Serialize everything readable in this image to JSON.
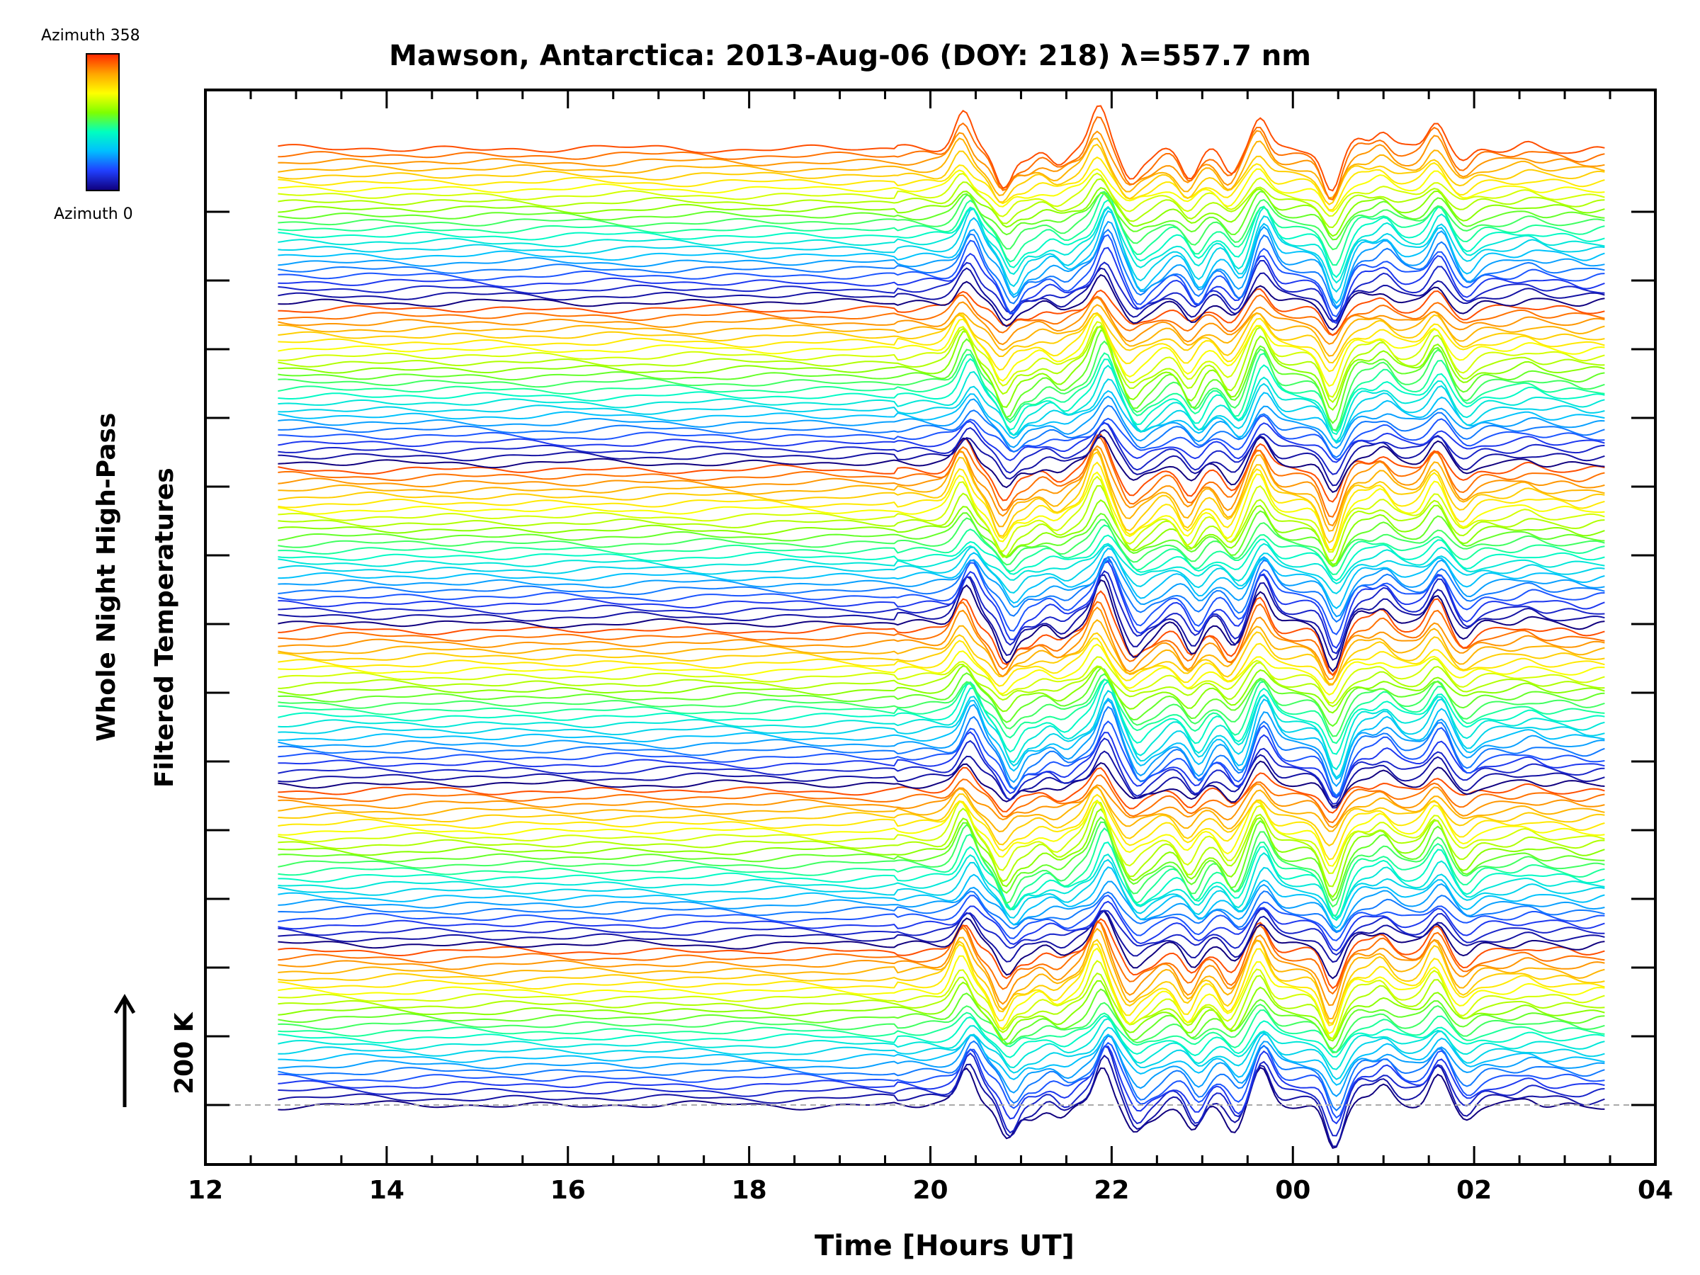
{
  "chart_data": {
    "type": "line",
    "title": "Mawson, Antarctica: 2013-Aug-06 (DOY: 218) λ=557.7 nm",
    "xlabel": "Time [Hours UT]",
    "ylabel": [
      "Whole Night High-Pass",
      "Filtered Temperatures"
    ],
    "xticks": [
      "12",
      "14",
      "16",
      "18",
      "20",
      "22",
      "00",
      "02",
      "04"
    ],
    "xlim_hours": [
      12,
      28
    ],
    "data_start_hour": 12.8,
    "data_end_hour": 27.45,
    "scale_bar": {
      "label": "200 K",
      "arrow": "up"
    },
    "colorbar": {
      "top_label": "Azimuth 358",
      "bottom_label": "Azimuth 0",
      "colors": [
        "#ff2a00",
        "#ffa500",
        "#ffff00",
        "#7fff00",
        "#00ffc0",
        "#00bfff",
        "#2040ff",
        "#10007f"
      ]
    },
    "series_description": "Stacked offset traces of high-pass filtered temperature, one per azimuth, coloured by azimuth",
    "n_traces": 144,
    "quiet_period_hours": [
      12.8,
      19.6
    ],
    "wave_features": [
      {
        "hour": 20.4,
        "amplitude_K": 70
      },
      {
        "hour": 20.85,
        "amplitude_K": -70
      },
      {
        "hour": 21.1,
        "amplitude_K": -25
      },
      {
        "hour": 21.45,
        "amplitude_K": -25
      },
      {
        "hour": 21.9,
        "amplitude_K": 80
      },
      {
        "hour": 22.25,
        "amplitude_K": -55
      },
      {
        "hour": 22.45,
        "amplitude_K": -25
      },
      {
        "hour": 22.9,
        "amplitude_K": -55
      },
      {
        "hour": 23.35,
        "amplitude_K": -50
      },
      {
        "hour": 23.65,
        "amplitude_K": 65
      },
      {
        "hour": 24.45,
        "amplitude_K": -85
      },
      {
        "hour": 24.75,
        "amplitude_K": 20
      },
      {
        "hour": 25.0,
        "amplitude_K": 35
      },
      {
        "hour": 25.6,
        "amplitude_K": 55
      },
      {
        "hour": 25.9,
        "amplitude_K": -30
      },
      {
        "hour": 26.6,
        "amplitude_K": 10
      },
      {
        "hour": 27.2,
        "amplitude_K": -5
      }
    ]
  }
}
